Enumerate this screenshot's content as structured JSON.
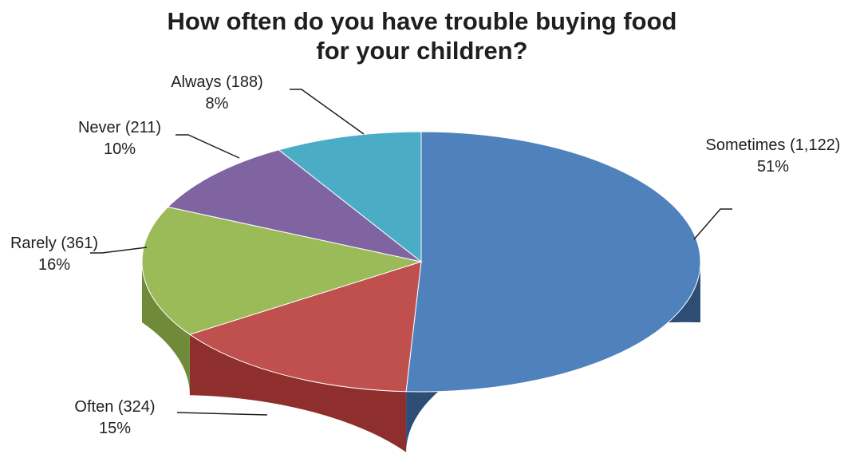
{
  "chart_data": {
    "type": "pie",
    "title_lines": [
      "How often do you have trouble buying food",
      "for your children?"
    ],
    "slices": [
      {
        "name": "Sometimes",
        "count_label": "(1,122)",
        "count": 1122,
        "percent_label": "51%",
        "percent": 51,
        "color": "#4f81bd",
        "side_color": "#2d4d75"
      },
      {
        "name": "Often",
        "count_label": "(324)",
        "count": 324,
        "percent_label": "15%",
        "percent": 15,
        "color": "#c0504d",
        "side_color": "#8e2f2d"
      },
      {
        "name": "Rarely",
        "count_label": "(361)",
        "count": 361,
        "percent_label": "16%",
        "percent": 16,
        "color": "#9bbb59",
        "side_color": "#6f8a39"
      },
      {
        "name": "Never",
        "count_label": "(211)",
        "count": 211,
        "percent_label": "10%",
        "percent": 10,
        "color": "#8064a2",
        "side_color": "#5a4575"
      },
      {
        "name": "Always",
        "count_label": "(188)",
        "count": 188,
        "percent_label": "8%",
        "percent": 8,
        "color": "#4bacc6",
        "side_color": "#2f7d92"
      }
    ],
    "start_angle_deg": 90,
    "direction": "clockwise",
    "style": "3d"
  }
}
